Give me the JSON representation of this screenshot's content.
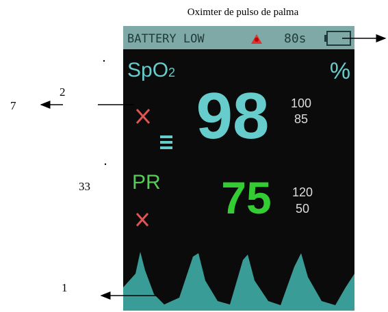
{
  "title": "Oximter de pulso de palma",
  "callouts": [
    "7",
    "2",
    "33",
    "1"
  ],
  "screen": {
    "status_bar": {
      "warning": "BATTERY LOW",
      "timer": "80s"
    },
    "spo2": {
      "label": "SpO",
      "subscript": "2",
      "unit": "%",
      "value": "98",
      "upper_limit": "100",
      "lower_limit": "85"
    },
    "pr": {
      "label": "PR",
      "value": "75",
      "upper_limit": "120",
      "lower_limit": "50"
    }
  }
}
